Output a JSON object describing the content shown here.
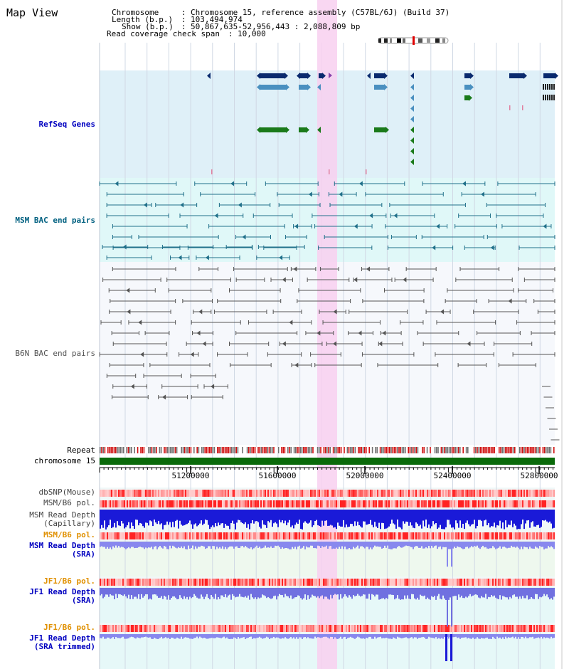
{
  "title": "Map View",
  "info": {
    "chromosome_label": "Chromosome",
    "chromosome_value": "Chromosome 15, reference assembly (C57BL/6J) (Build 37)",
    "length_label": "Length (b.p.)",
    "length_value": "103,494,974",
    "show_label": "Show (b.p.)",
    "show_value": "50,867,635-52,956,443 : 2,088,809 bp",
    "coverage_label": "Read coverage check span",
    "coverage_value": "10,000"
  },
  "tracks": {
    "refseq": "RefSeq Genes",
    "msm_bac": "MSM BAC end pairs",
    "b6n_bac": "B6N BAC end pairs",
    "repeat": "Repeat",
    "chromosome": "chromosome 15",
    "dbsnp": "dbSNP(Mouse)",
    "msm_b6_pol": "MSM/B6 pol.",
    "msm_depth_cap_1": "MSM Read Depth",
    "msm_depth_cap_2": "(Capillary)",
    "msm_b6_pol2": "MSM/B6 pol.",
    "msm_depth_sra_1": "MSM Read Depth",
    "msm_depth_sra_2": "(SRA)",
    "jf1_pol": "JF1/B6 pol.",
    "jf1_depth_1": "JF1 Read Depth",
    "jf1_depth_2": "(SRA)",
    "jf1_pol2": "JF1/B6 pol.",
    "jf1_trim_1": "JF1 Read Depth",
    "jf1_trim_2": "(SRA trimmed)"
  },
  "axis": {
    "ticks": [
      "51200000",
      "51600000",
      "52000000",
      "52400000",
      "52800000"
    ]
  },
  "colors": {
    "refseq_bg": "#dff0f8",
    "msm_bg": "#e0f8f8",
    "genes_dark": "#0a2a6e",
    "genes_mid": "#4a90c0",
    "genes_green": "#1a7a1a",
    "msm_line": "#20708a",
    "b6n_line": "#555555",
    "chrom_bar": "#0a6a0a",
    "highlight": "#f8d0f0",
    "label_blue": "#0000c0",
    "label_navy": "#000088",
    "label_orange": "#e09000",
    "label_msm": "#006080",
    "label_gray": "#404040"
  }
}
